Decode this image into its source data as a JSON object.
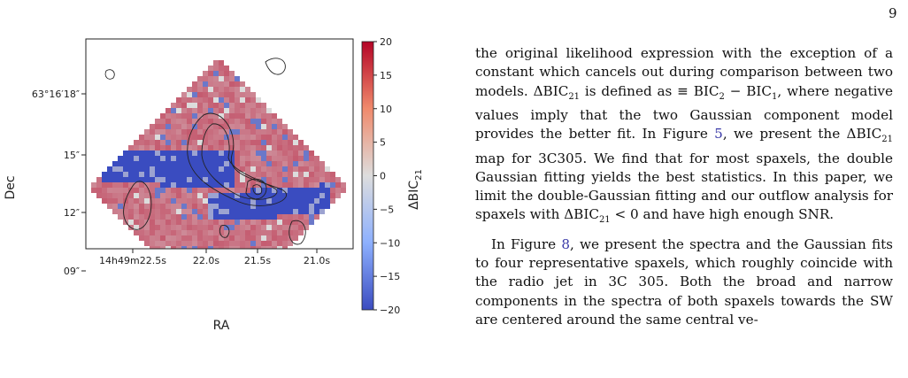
{
  "page": {
    "number": "9"
  },
  "figure": {
    "axis_x_label": "RA",
    "axis_y_label": "Dec",
    "colorbar_label": "ΔBIC",
    "colorbar_label_sub": "21",
    "x_ticks": [
      "14h49m22.5s",
      "22.0s",
      "21.5s",
      "21.0s"
    ],
    "y_ticks": [
      "63°16′18″",
      "15″",
      "12″",
      "09″"
    ],
    "colorbar_ticks": [
      "20",
      "15",
      "10",
      "5",
      "0",
      "−5",
      "−10",
      "−15",
      "−20"
    ],
    "colormap": {
      "negative": "#3a4cc0",
      "zero": "#dddddd",
      "positive": "#b40426"
    },
    "contour_color": "#222222"
  },
  "chart_data": {
    "type": "heatmap",
    "colorbar_range": [
      -20,
      20
    ],
    "colorbar_ticks": [
      20,
      15,
      10,
      5,
      0,
      -5,
      -10,
      -15,
      -20
    ],
    "xlabel": "RA",
    "ylabel": "Dec",
    "x_ticks": [
      "14h49m22.5s",
      "22.0s",
      "21.5s",
      "21.0s"
    ],
    "y_ticks": [
      "63°16′18″",
      "15″",
      "12″",
      "09″"
    ],
    "colorbar_label": "ΔBIC21"
  },
  "text": {
    "para1_a": "the original likelihood expression with the exception of a constant which cancels out during comparison between two models. ",
    "para1_b": "ΔBIC",
    "para1_b_sub": "21",
    "para1_c": " is defined as ≡ BIC",
    "para1_c_sub": "2",
    "para1_d": " − BIC",
    "para1_d_sub": "1",
    "para1_e": ", where negative values imply that the two Gaussian component model provides the better fit. In Figure ",
    "para1_ref": "5",
    "para1_f": ", we present the ",
    "para1_g": "ΔBIC",
    "para1_g_sub": "21",
    "para1_h": " map for 3C305. We find that for most spaxels, the double Gaussian fitting yields the best statistics. In this paper, we limit the double-Gaussian fitting and our outflow analysis for spaxels with ",
    "para1_i": "ΔBIC",
    "para1_i_sub": "21",
    "para1_j": " < 0 and have high enough SNR.",
    "para2_a": "In Figure ",
    "para2_ref": "8",
    "para2_b": ", we present the spectra and the Gaussian fits to four representative spaxels, which roughly coincide with the radio jet in 3C 305. Both the broad and narrow components in the spectra of both spaxels towards the SW are centered around the same central ve-"
  }
}
